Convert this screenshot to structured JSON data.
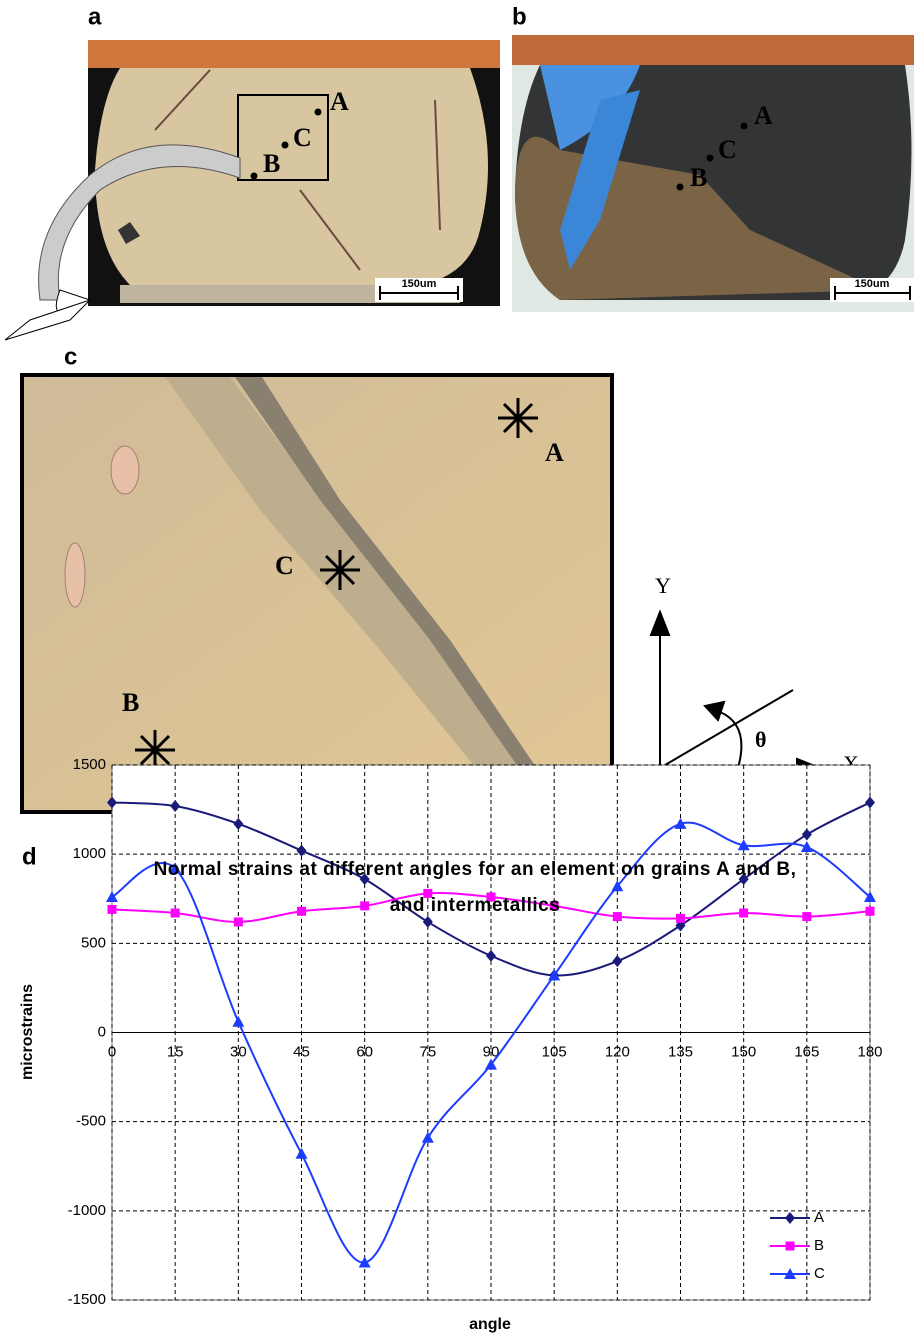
{
  "panels": [
    {
      "label": "a",
      "points": [
        "A",
        "B",
        "C"
      ],
      "scale_bar": "150um"
    },
    {
      "label": "b",
      "points": [
        "A",
        "B",
        "C"
      ],
      "scale_bar": "150um"
    },
    {
      "label": "c",
      "points": [
        "A",
        "B",
        "C"
      ]
    },
    {
      "label": "d"
    }
  ],
  "axes_diagram": {
    "y": "Y",
    "x": "X",
    "angle": "θ"
  },
  "chart_data": {
    "type": "line",
    "title": "Normal strains at different angles for an element on grains A and B, and intermetallics",
    "x_label": "angle",
    "y_label": "microstrains",
    "x": [
      0,
      15,
      30,
      45,
      60,
      75,
      90,
      105,
      120,
      135,
      150,
      165,
      180
    ],
    "series": [
      {
        "name": "A",
        "color": "#1a1a7a",
        "marker": "diamond",
        "values": [
          1290,
          1270,
          1170,
          1020,
          860,
          620,
          430,
          320,
          400,
          600,
          860,
          1110,
          1290
        ]
      },
      {
        "name": "B",
        "color": "#ff00ff",
        "marker": "square",
        "values": [
          690,
          670,
          620,
          680,
          710,
          780,
          760,
          710,
          650,
          640,
          670,
          650,
          680
        ]
      },
      {
        "name": "C",
        "color": "#1e3cff",
        "marker": "triangle",
        "values": [
          760,
          920,
          60,
          -680,
          -1290,
          -590,
          -180,
          320,
          820,
          1170,
          1050,
          1040,
          760
        ]
      }
    ],
    "xlim": [
      0,
      180
    ],
    "ylim": [
      -1500,
      1500
    ],
    "xticks": [
      0,
      15,
      30,
      45,
      60,
      75,
      90,
      105,
      120,
      135,
      150,
      165,
      180
    ],
    "yticks": [
      -1500,
      -1000,
      -500,
      0,
      500,
      1000,
      1500
    ],
    "grid": true,
    "legend": "lower right"
  }
}
